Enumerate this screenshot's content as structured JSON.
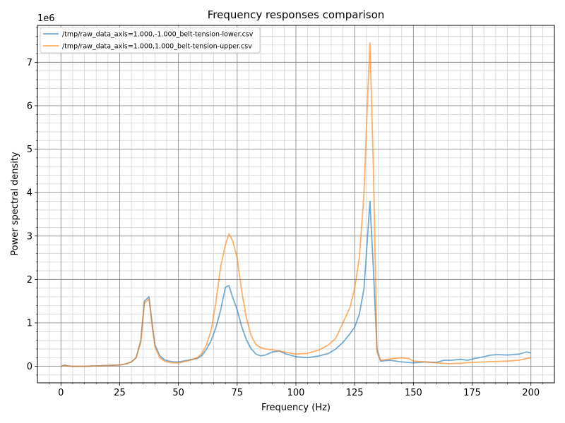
{
  "chart_data": {
    "type": "line",
    "title": "Frequency responses comparison",
    "xlabel": "Frequency (Hz)",
    "ylabel": "Power spectral density",
    "y_offset_text": "1e6",
    "y_scale": 1000000,
    "xlim": [
      -10,
      210
    ],
    "ylim": [
      -0.38,
      7.85
    ],
    "x_ticks": [
      0,
      25,
      50,
      75,
      100,
      125,
      150,
      175,
      200
    ],
    "x_tick_labels": [
      "0",
      "25",
      "50",
      "75",
      "100",
      "125",
      "150",
      "175",
      "200"
    ],
    "y_ticks": [
      0,
      1,
      2,
      3,
      4,
      5,
      6,
      7
    ],
    "y_tick_labels": [
      "0",
      "1",
      "2",
      "3",
      "4",
      "5",
      "6",
      "7"
    ],
    "grid": true,
    "minor_grid": true,
    "legend_position": "top-left",
    "series": [
      {
        "name": "/tmp/raw_data_axis=1.000,-1.000_belt-tension-lower.csv",
        "color": "#1f77b4",
        "x": [
          0,
          1.5,
          3,
          5,
          10,
          15,
          20,
          25,
          28,
          30,
          32,
          34,
          35.5,
          37.5,
          39,
          40,
          42,
          44,
          46,
          48,
          50,
          52,
          55,
          58,
          60,
          62,
          64,
          66,
          68,
          70,
          71.5,
          73,
          75,
          77,
          79,
          81,
          83,
          85,
          87,
          90,
          93,
          96,
          100,
          105,
          110,
          114,
          117,
          120,
          123,
          125,
          127,
          129,
          130.5,
          131.5,
          133,
          134.5,
          136,
          140,
          145,
          150,
          155,
          160,
          163,
          166,
          170,
          173,
          176,
          178,
          180,
          183,
          186,
          190,
          195,
          198,
          200
        ],
        "values": [
          0.0,
          0.03,
          0.01,
          0.0,
          0.0,
          0.01,
          0.02,
          0.03,
          0.06,
          0.1,
          0.2,
          0.6,
          1.5,
          1.6,
          0.9,
          0.5,
          0.25,
          0.15,
          0.12,
          0.1,
          0.1,
          0.12,
          0.15,
          0.18,
          0.25,
          0.4,
          0.6,
          0.9,
          1.3,
          1.82,
          1.86,
          1.6,
          1.3,
          0.9,
          0.6,
          0.4,
          0.28,
          0.24,
          0.26,
          0.33,
          0.35,
          0.28,
          0.22,
          0.2,
          0.24,
          0.3,
          0.4,
          0.55,
          0.75,
          0.9,
          1.2,
          1.8,
          3.0,
          3.8,
          2.2,
          0.4,
          0.12,
          0.14,
          0.1,
          0.08,
          0.1,
          0.09,
          0.14,
          0.14,
          0.16,
          0.14,
          0.18,
          0.2,
          0.22,
          0.26,
          0.27,
          0.26,
          0.28,
          0.33,
          0.31
        ]
      },
      {
        "name": "/tmp/raw_data_axis=1.000,1.000_belt-tension-upper.csv",
        "color": "#ff7f0e",
        "x": [
          0,
          1.5,
          3,
          5,
          10,
          15,
          20,
          25,
          28,
          30,
          32,
          34,
          35.5,
          37.5,
          39,
          40,
          42,
          44,
          46,
          48,
          50,
          52,
          55,
          58,
          60,
          62,
          64,
          66,
          68,
          70,
          71.5,
          73,
          75,
          77,
          79,
          81,
          83,
          85,
          87,
          90,
          93,
          96,
          100,
          105,
          110,
          114,
          117,
          120,
          123,
          125,
          127,
          129,
          130.5,
          131.5,
          133,
          134.5,
          136,
          140,
          145,
          148,
          150,
          155,
          160,
          165,
          170,
          175,
          180,
          185,
          190,
          195,
          198,
          200
        ],
        "values": [
          0.0,
          0.02,
          0.01,
          0.0,
          0.0,
          0.01,
          0.02,
          0.03,
          0.06,
          0.1,
          0.2,
          0.55,
          1.45,
          1.55,
          0.85,
          0.45,
          0.2,
          0.12,
          0.09,
          0.08,
          0.08,
          0.1,
          0.14,
          0.2,
          0.3,
          0.5,
          0.85,
          1.5,
          2.3,
          2.8,
          3.05,
          2.9,
          2.5,
          1.7,
          1.1,
          0.7,
          0.5,
          0.43,
          0.4,
          0.38,
          0.35,
          0.32,
          0.28,
          0.3,
          0.38,
          0.5,
          0.65,
          1.0,
          1.35,
          1.8,
          2.5,
          4.0,
          6.2,
          7.45,
          4.5,
          0.32,
          0.14,
          0.17,
          0.2,
          0.18,
          0.12,
          0.1,
          0.08,
          0.06,
          0.07,
          0.09,
          0.1,
          0.11,
          0.12,
          0.14,
          0.18,
          0.2
        ]
      }
    ]
  }
}
